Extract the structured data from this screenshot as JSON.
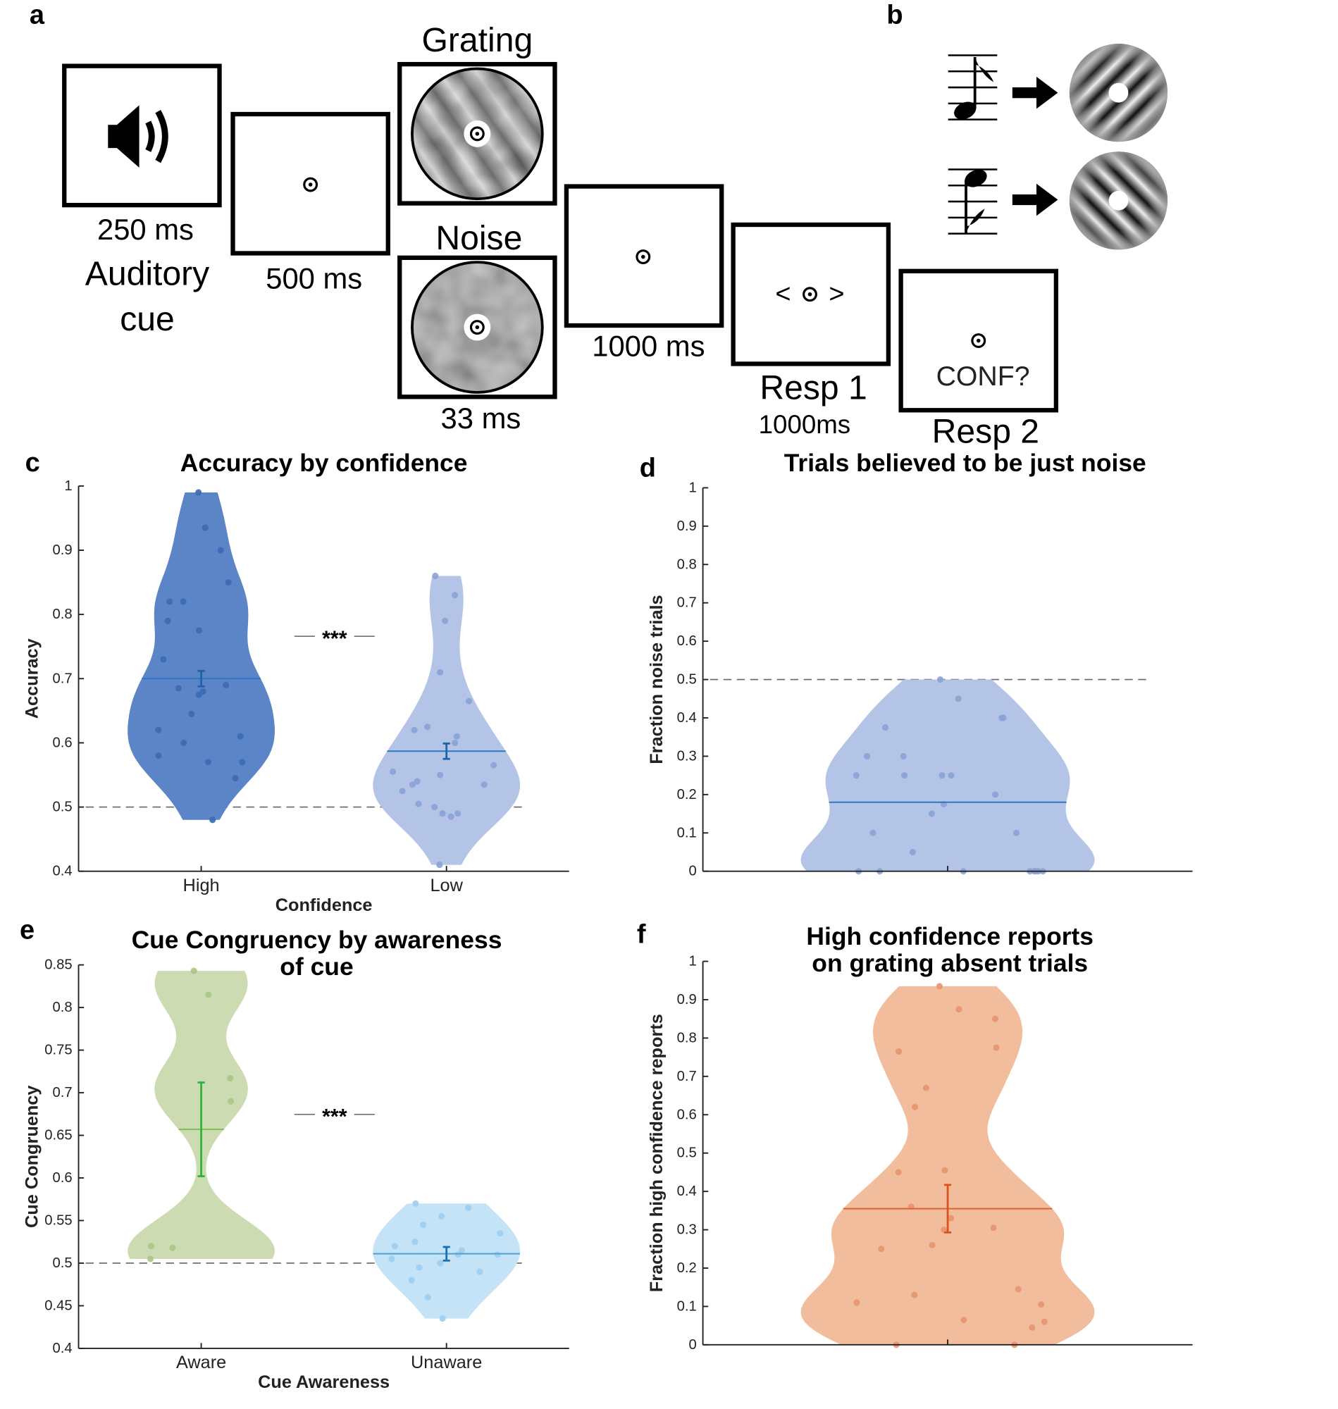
{
  "panel_labels": [
    "a",
    "b",
    "c",
    "d",
    "e",
    "f"
  ],
  "diagram": {
    "cue_duration": "250 ms",
    "cue_label": [
      "Auditory",
      "cue"
    ],
    "fixation_duration": "500 ms",
    "grating_label": "Grating",
    "noise_label": "Noise",
    "stimulus_duration": "33 ms",
    "delay_duration": "1000 ms",
    "resp1_symbols": [
      "<",
      ">"
    ],
    "resp1_label": "Resp 1",
    "resp1_duration": "1000ms",
    "conf_prompt": "CONF?",
    "resp2_label": "Resp 2"
  },
  "chart_data": [
    {
      "type": "violin",
      "title": "Accuracy by confidence",
      "xlabel": "Confidence",
      "ylabel": "Accuracy",
      "categories": [
        "High",
        "Low"
      ],
      "values": [
        [
          0.99,
          0.935,
          0.9,
          0.85,
          0.82,
          0.82,
          0.79,
          0.775,
          0.73,
          0.685,
          0.68,
          0.69,
          0.675,
          0.645,
          0.62,
          0.61,
          0.6,
          0.58,
          0.57,
          0.57,
          0.545,
          0.48
        ],
        [
          0.86,
          0.83,
          0.79,
          0.71,
          0.665,
          0.625,
          0.62,
          0.61,
          0.6,
          0.565,
          0.555,
          0.55,
          0.54,
          0.535,
          0.525,
          0.535,
          0.5,
          0.505,
          0.49,
          0.485,
          0.49,
          0.41
        ]
      ],
      "means": [
        0.7,
        0.587
      ],
      "sems": [
        0.012,
        0.012
      ],
      "colors": [
        "#5b85c6",
        "#b4c4e7"
      ],
      "point_colors": [
        "#3a6ab4",
        "#8aa2d6"
      ],
      "line_colors": [
        "#2e78c0",
        "#2e78c0"
      ],
      "errorbar_colors": [
        "#1f63a8",
        "#1f63a8"
      ],
      "reference_line": 0.5,
      "significance": "***",
      "ylim": [
        0.4,
        1
      ],
      "yticks": [
        0.4,
        0.5,
        0.6,
        0.7,
        0.8,
        0.9,
        1
      ]
    },
    {
      "type": "violin",
      "title": "Trials believed to be just noise",
      "ylabel": "Fraction noise trials",
      "categories": [
        null
      ],
      "values": [
        [
          0.5,
          0.45,
          0.4,
          0.4,
          0.375,
          0.3,
          0.3,
          0.25,
          0.25,
          0.25,
          0.25,
          0.2,
          0.175,
          0.15,
          0.1,
          0.1,
          0.05,
          0,
          0,
          0,
          0,
          0,
          0,
          0,
          0
        ]
      ],
      "means": [
        0.18
      ],
      "colors": [
        "#b4c4e7"
      ],
      "point_colors": [
        "#8aa2d6"
      ],
      "line_colors": [
        "#2e78c0"
      ],
      "reference_line": 0.5,
      "ylim": [
        0,
        1
      ],
      "yticks": [
        0,
        0.1,
        0.2,
        0.3,
        0.4,
        0.5,
        0.6,
        0.7,
        0.8,
        0.9,
        1
      ]
    },
    {
      "type": "violin",
      "title": [
        "Cue Congruency by awareness",
        "of cue"
      ],
      "xlabel": "Cue Awareness",
      "ylabel": "Cue Congruency",
      "categories": [
        "Aware",
        "Unaware"
      ],
      "values": [
        [
          0.843,
          0.815,
          0.717,
          0.69,
          0.52,
          0.518,
          0.505
        ],
        [
          0.57,
          0.565,
          0.555,
          0.545,
          0.535,
          0.525,
          0.52,
          0.515,
          0.51,
          0.51,
          0.505,
          0.5,
          0.495,
          0.49,
          0.48,
          0.46,
          0.435
        ]
      ],
      "means": [
        0.657,
        0.511
      ],
      "sems": [
        0.055,
        0.008
      ],
      "colors": [
        "#cddbb2",
        "#c5e3f7"
      ],
      "point_colors": [
        "#a8c585",
        "#9ccdee"
      ],
      "line_colors": [
        "#7dc35a",
        "#4aa3d8"
      ],
      "errorbar_colors": [
        "#2fb33a",
        "#1b6fb0"
      ],
      "reference_line": 0.5,
      "significance": "***",
      "ylim": [
        0.4,
        0.85
      ],
      "yticks": [
        0.4,
        0.45,
        0.5,
        0.55,
        0.6,
        0.65,
        0.7,
        0.75,
        0.8,
        0.85
      ]
    },
    {
      "type": "violin",
      "title": [
        "High confidence reports",
        "on grating absent trials"
      ],
      "ylabel": "Fraction high confidence reports",
      "categories": [
        null
      ],
      "values": [
        [
          0.935,
          0.875,
          0.85,
          0.775,
          0.765,
          0.67,
          0.62,
          0.455,
          0.45,
          0.36,
          0.33,
          0.305,
          0.3,
          0.26,
          0.25,
          0.145,
          0.13,
          0.11,
          0.105,
          0.065,
          0.06,
          0.045,
          0,
          0
        ]
      ],
      "means": [
        0.355
      ],
      "sems": [
        0.062
      ],
      "colors": [
        "#f2bd9c"
      ],
      "point_colors": [
        "#e89470"
      ],
      "line_colors": [
        "#e0622e"
      ],
      "errorbar_colors": [
        "#d9531e"
      ],
      "ylim": [
        0,
        1
      ],
      "yticks": [
        0,
        0.1,
        0.2,
        0.3,
        0.4,
        0.5,
        0.6,
        0.7,
        0.8,
        0.9,
        1
      ]
    }
  ]
}
